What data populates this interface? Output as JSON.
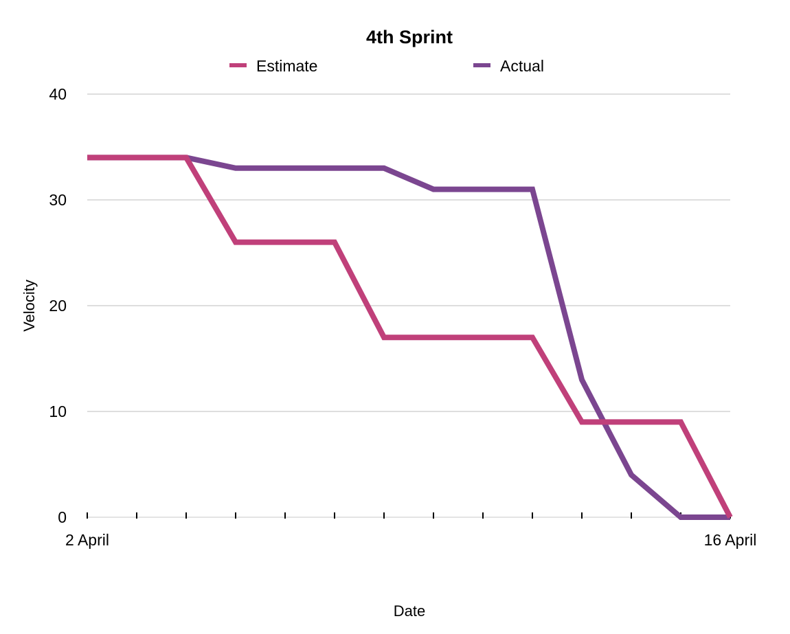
{
  "chart_data": {
    "type": "line",
    "title": "4th Sprint",
    "xlabel": "Date",
    "ylabel": "Velocity",
    "x_tick_labels": [
      "2 April",
      "16 April"
    ],
    "x_points": 14,
    "ylim": [
      0,
      40
    ],
    "y_ticks": [
      0,
      10,
      20,
      30,
      40
    ],
    "grid": true,
    "legend_position": "top",
    "series": [
      {
        "name": "Estimate",
        "color": "#c0407a",
        "values": [
          34,
          34,
          34,
          26,
          26,
          26,
          17,
          17,
          17,
          17,
          9,
          9,
          9,
          0
        ]
      },
      {
        "name": "Actual",
        "color": "#7b4690",
        "values": [
          34,
          34,
          34,
          33,
          33,
          33,
          33,
          31,
          31,
          31,
          13,
          4,
          0,
          0
        ]
      }
    ]
  }
}
